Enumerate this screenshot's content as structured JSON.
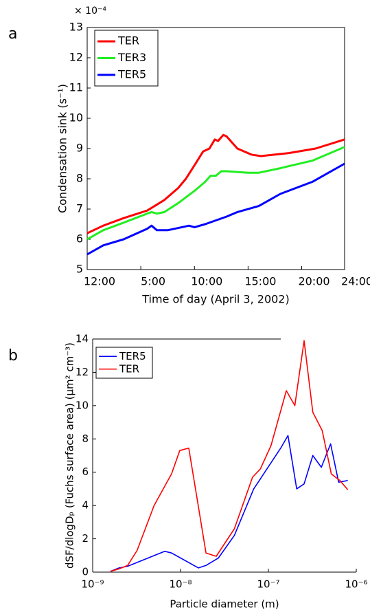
{
  "chart_data": [
    {
      "type": "line",
      "panel": "a",
      "scale_label": "× 10⁻⁴",
      "xlabel": "Time of day (April 3, 2002)",
      "ylabel": "Condensation sink (s⁻¹)",
      "xlim": [
        0,
        24
      ],
      "xticks": [
        {
          "value": 0,
          "label": "12:00"
        },
        {
          "value": 5,
          "label": "5:00"
        },
        {
          "value": 10,
          "label": "10:00"
        },
        {
          "value": 15,
          "label": "15:00"
        },
        {
          "value": 20,
          "label": "20:00"
        },
        {
          "value": 24,
          "label": "24:00"
        }
      ],
      "ylim": [
        5,
        13
      ],
      "yticks": [
        5,
        6,
        7,
        8,
        9,
        10,
        11,
        12,
        13
      ],
      "legend": "upper left",
      "series": [
        {
          "name": "TER",
          "color": "#ff0000",
          "x": [
            0,
            1.5,
            3.4,
            5.6,
            7.2,
            8.5,
            9.2,
            10.1,
            10.8,
            11.4,
            11.9,
            12.2,
            12.7,
            13,
            14,
            15.3,
            16.2,
            18.8,
            21.3,
            24
          ],
          "values": [
            6.2,
            6.45,
            6.7,
            6.95,
            7.3,
            7.7,
            8.0,
            8.5,
            8.9,
            9.0,
            9.3,
            9.25,
            9.45,
            9.4,
            9.0,
            8.8,
            8.75,
            8.85,
            9.0,
            9.3
          ]
        },
        {
          "name": "TER3",
          "color": "#22ee22",
          "x": [
            0,
            1.5,
            3.4,
            5.6,
            6,
            6.5,
            7.2,
            8.5,
            10,
            11,
            11.5,
            12,
            12.5,
            13,
            15,
            16,
            18,
            21,
            24
          ],
          "values": [
            6.0,
            6.3,
            6.55,
            6.85,
            6.9,
            6.85,
            6.9,
            7.2,
            7.6,
            7.9,
            8.1,
            8.1,
            8.25,
            8.25,
            8.2,
            8.2,
            8.35,
            8.6,
            9.05
          ]
        },
        {
          "name": "TER5",
          "color": "#0000ff",
          "x": [
            0,
            1.5,
            3.4,
            5.6,
            6,
            6.5,
            7.5,
            9.5,
            10,
            11,
            13,
            14,
            16,
            18,
            21,
            24
          ],
          "values": [
            5.5,
            5.8,
            6.0,
            6.35,
            6.45,
            6.3,
            6.3,
            6.45,
            6.4,
            6.5,
            6.75,
            6.9,
            7.1,
            7.5,
            7.9,
            8.5
          ]
        }
      ]
    },
    {
      "type": "line",
      "panel": "b",
      "xlabel": "Particle diameter (m)",
      "ylabel": "dSF/dlogDₚ (Fuchs surface area) (μm² cm⁻³)",
      "xscale": "log",
      "xlim": [
        1e-09,
        1e-06
      ],
      "xticks": [
        {
          "value": 1e-09,
          "label": "10⁻⁹"
        },
        {
          "value": 1e-08,
          "label": "10⁻⁸"
        },
        {
          "value": 1e-07,
          "label": "10⁻⁷"
        },
        {
          "value": 1e-06,
          "label": "10⁻⁶"
        }
      ],
      "ylim": [
        0,
        14
      ],
      "yticks": [
        0,
        2,
        4,
        6,
        8,
        10,
        12,
        14
      ],
      "legend": "upper left",
      "series": [
        {
          "name": "TER5",
          "color": "#0000ff",
          "x": [
            1.6e-09,
            2e-09,
            2.5e-09,
            6.6e-09,
            7.9e-09,
            1.6e-08,
            1.95e-08,
            2.7e-08,
            4.1e-08,
            6.8e-08,
            8.1e-08,
            1.4e-07,
            1.67e-07,
            2.1e-07,
            2.55e-07,
            3.2e-07,
            4e-07,
            5.1e-07,
            6.3e-07,
            8e-07
          ],
          "values": [
            0.05,
            0.25,
            0.35,
            1.25,
            1.15,
            0.25,
            0.4,
            0.85,
            2.2,
            5.0,
            5.6,
            7.5,
            8.2,
            5.0,
            5.3,
            7.0,
            6.3,
            7.7,
            5.4,
            5.5
          ]
        },
        {
          "name": "TER",
          "color": "#ff0000",
          "x": [
            1.6e-09,
            2e-09,
            2.5e-09,
            3.2e-09,
            5e-09,
            7.9e-09,
            9.8e-09,
            1.24e-08,
            1.95e-08,
            2.55e-08,
            4.1e-08,
            6.6e-08,
            8.1e-08,
            1.07e-07,
            1.6e-07,
            2e-07,
            2.55e-07,
            3.2e-07,
            4.1e-07,
            5.2e-07,
            6.5e-07,
            8e-07
          ],
          "values": [
            0.05,
            0.2,
            0.4,
            1.3,
            4.0,
            5.9,
            7.3,
            7.45,
            1.15,
            0.95,
            2.6,
            5.7,
            6.2,
            7.6,
            10.9,
            10.0,
            13.9,
            9.6,
            8.5,
            5.9,
            5.5,
            4.95
          ]
        }
      ]
    }
  ]
}
